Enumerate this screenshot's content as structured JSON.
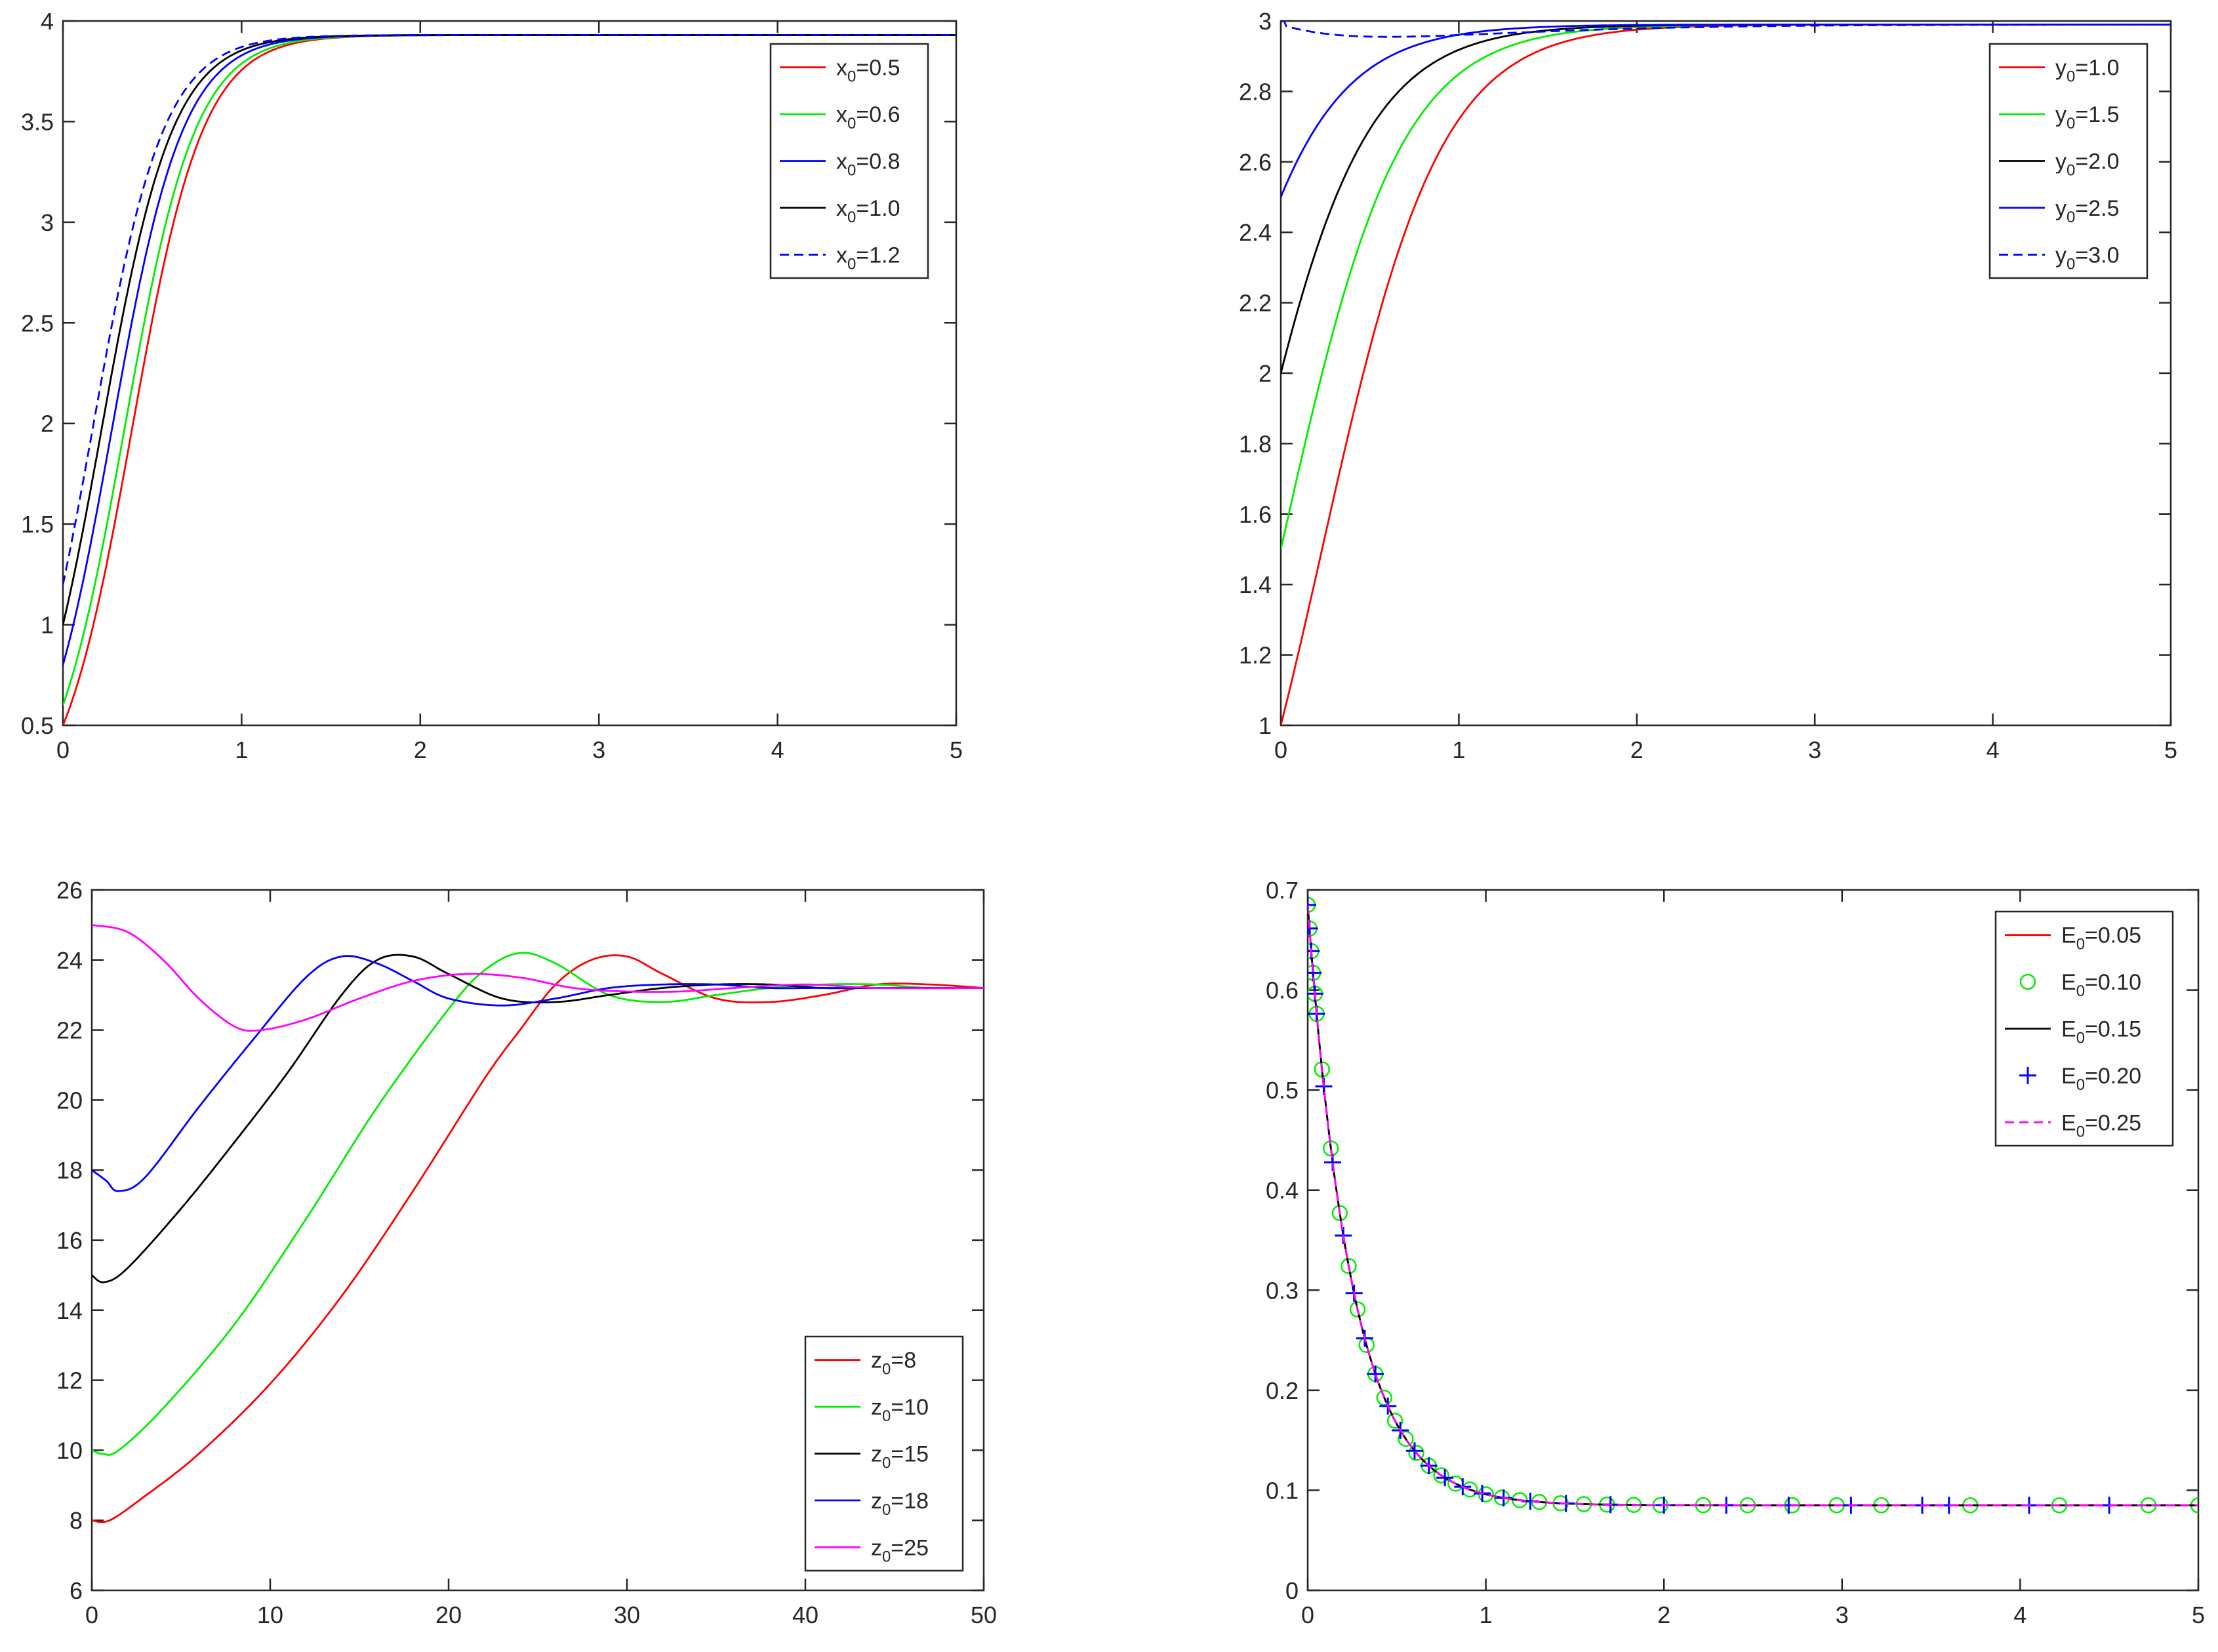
{
  "chart_data": [
    {
      "id": "x",
      "type": "line",
      "title": "",
      "xlabel": "",
      "ylabel": "",
      "xlim": [
        0,
        5
      ],
      "ylim": [
        0.5,
        4
      ],
      "xticks": [
        "0",
        "1",
        "2",
        "3",
        "4",
        "5"
      ],
      "yticks": [
        "0.5",
        "1",
        "1.5",
        "2",
        "2.5",
        "3",
        "3.5",
        "4"
      ],
      "legend_position": "top-right",
      "model": "logistic",
      "equilibrium": 3.93,
      "rate": 5.0,
      "series": [
        {
          "name": "0.5",
          "legend_var": "x",
          "legend_value": "0.5",
          "initial": 0.5,
          "color": "#ff0000",
          "style": "solid"
        },
        {
          "name": "0.6",
          "legend_var": "x",
          "legend_value": "0.6",
          "initial": 0.6,
          "color": "#00ee00",
          "style": "solid"
        },
        {
          "name": "0.8",
          "legend_var": "x",
          "legend_value": "0.8",
          "initial": 0.8,
          "color": "#0000ff",
          "style": "solid"
        },
        {
          "name": "1.0",
          "legend_var": "x",
          "legend_value": "1.0",
          "initial": 1.0,
          "color": "#000000",
          "style": "solid"
        },
        {
          "name": "1.2",
          "legend_var": "x",
          "legend_value": "1.2",
          "initial": 1.2,
          "color": "#0000ff",
          "style": "dashed"
        }
      ]
    },
    {
      "id": "y",
      "type": "line",
      "title": "",
      "xlabel": "",
      "ylabel": "",
      "xlim": [
        0,
        5
      ],
      "ylim": [
        1,
        3
      ],
      "xticks": [
        "0",
        "1",
        "2",
        "3",
        "4",
        "5"
      ],
      "yticks": [
        "1",
        "1.2",
        "1.4",
        "1.6",
        "1.8",
        "2",
        "2.2",
        "2.4",
        "2.6",
        "2.8",
        "3"
      ],
      "legend_position": "top-right",
      "model": "logistic",
      "equilibrium": 2.99,
      "rate": 3.0,
      "dip": {
        "series_index": 4,
        "amount": 0.035,
        "time": 0.6
      },
      "series": [
        {
          "name": "1.0",
          "legend_var": "y",
          "legend_value": "1.0",
          "initial": 1.0,
          "color": "#ff0000",
          "style": "solid"
        },
        {
          "name": "1.5",
          "legend_var": "y",
          "legend_value": "1.5",
          "initial": 1.5,
          "color": "#00ee00",
          "style": "solid"
        },
        {
          "name": "2.0",
          "legend_var": "y",
          "legend_value": "2.0",
          "initial": 2.0,
          "color": "#000000",
          "style": "solid"
        },
        {
          "name": "2.5",
          "legend_var": "y",
          "legend_value": "2.5",
          "initial": 2.5,
          "color": "#0000ff",
          "style": "solid"
        },
        {
          "name": "3.0",
          "legend_var": "y",
          "legend_value": "3.0",
          "initial": 3.0,
          "color": "#0000ff",
          "style": "dashed"
        }
      ]
    },
    {
      "id": "z",
      "type": "line",
      "title": "",
      "xlabel": "",
      "ylabel": "",
      "xlim": [
        0,
        50
      ],
      "ylim": [
        6,
        26
      ],
      "xticks": [
        "0",
        "10",
        "20",
        "30",
        "40",
        "50"
      ],
      "yticks": [
        "6",
        "8",
        "10",
        "12",
        "14",
        "16",
        "18",
        "20",
        "22",
        "24",
        "26"
      ],
      "legend_position": "bottom-right",
      "model": "damped",
      "equilibrium": 23.2,
      "series": [
        {
          "name": "8",
          "legend_var": "z",
          "legend_value": "8",
          "color": "#ff0000",
          "style": "solid",
          "points": [
            [
              0,
              8
            ],
            [
              1,
              8
            ],
            [
              3,
              8.7
            ],
            [
              6,
              9.9
            ],
            [
              10,
              11.9
            ],
            [
              14,
              14.4
            ],
            [
              18,
              17.4
            ],
            [
              22,
              20.6
            ],
            [
              24,
              22.0
            ],
            [
              26,
              23.3
            ],
            [
              28,
              24.0
            ],
            [
              30,
              24.1
            ],
            [
              32,
              23.6
            ],
            [
              35,
              22.9
            ],
            [
              38,
              22.8
            ],
            [
              41,
              23.0
            ],
            [
              44,
              23.3
            ],
            [
              47,
              23.3
            ],
            [
              50,
              23.2
            ]
          ]
        },
        {
          "name": "10",
          "legend_var": "z",
          "legend_value": "10",
          "color": "#00ee00",
          "style": "solid",
          "points": [
            [
              0,
              10
            ],
            [
              0.6,
              9.9
            ],
            [
              1.5,
              10.0
            ],
            [
              4,
              11.2
            ],
            [
              8,
              13.6
            ],
            [
              12,
              16.6
            ],
            [
              16,
              19.8
            ],
            [
              20,
              22.6
            ],
            [
              22,
              23.7
            ],
            [
              24,
              24.2
            ],
            [
              26,
              23.9
            ],
            [
              29,
              23.0
            ],
            [
              32,
              22.8
            ],
            [
              35,
              23.0
            ],
            [
              38,
              23.2
            ],
            [
              41,
              23.3
            ],
            [
              44,
              23.3
            ],
            [
              47,
              23.2
            ],
            [
              50,
              23.2
            ]
          ]
        },
        {
          "name": "15",
          "legend_var": "z",
          "legend_value": "15",
          "color": "#000000",
          "style": "solid",
          "points": [
            [
              0,
              15
            ],
            [
              0.7,
              14.8
            ],
            [
              2,
              15.2
            ],
            [
              5,
              16.9
            ],
            [
              8,
              18.8
            ],
            [
              11,
              20.8
            ],
            [
              14,
              23.0
            ],
            [
              16,
              24.0
            ],
            [
              18,
              24.1
            ],
            [
              20,
              23.6
            ],
            [
              23,
              22.9
            ],
            [
              26,
              22.8
            ],
            [
              29,
              23.0
            ],
            [
              32,
              23.2
            ],
            [
              35,
              23.3
            ],
            [
              38,
              23.3
            ],
            [
              41,
              23.2
            ],
            [
              44,
              23.2
            ],
            [
              50,
              23.2
            ]
          ]
        },
        {
          "name": "18",
          "legend_var": "z",
          "legend_value": "18",
          "color": "#0000ff",
          "style": "solid",
          "points": [
            [
              0,
              18
            ],
            [
              0.8,
              17.7
            ],
            [
              1.5,
              17.4
            ],
            [
              3,
              17.8
            ],
            [
              6,
              19.8
            ],
            [
              9,
              21.7
            ],
            [
              12,
              23.5
            ],
            [
              14,
              24.1
            ],
            [
              16,
              23.9
            ],
            [
              18,
              23.4
            ],
            [
              20,
              22.9
            ],
            [
              23,
              22.7
            ],
            [
              26,
              22.9
            ],
            [
              29,
              23.2
            ],
            [
              32,
              23.3
            ],
            [
              35,
              23.3
            ],
            [
              38,
              23.2
            ],
            [
              41,
              23.2
            ],
            [
              50,
              23.2
            ]
          ]
        },
        {
          "name": "25",
          "legend_var": "z",
          "legend_value": "25",
          "color": "#ff00ff",
          "style": "solid",
          "points": [
            [
              0,
              25
            ],
            [
              2,
              24.8
            ],
            [
              4,
              24.0
            ],
            [
              6,
              22.9
            ],
            [
              8,
              22.1
            ],
            [
              9.5,
              22.0
            ],
            [
              12,
              22.3
            ],
            [
              15,
              22.9
            ],
            [
              18,
              23.4
            ],
            [
              21,
              23.6
            ],
            [
              24,
              23.5
            ],
            [
              27,
              23.2
            ],
            [
              30,
              23.1
            ],
            [
              33,
              23.1
            ],
            [
              36,
              23.2
            ],
            [
              40,
              23.3
            ],
            [
              44,
              23.2
            ],
            [
              50,
              23.2
            ]
          ]
        }
      ]
    },
    {
      "id": "E",
      "type": "line",
      "title": "",
      "xlabel": "",
      "ylabel": "",
      "xlim": [
        0,
        5
      ],
      "ylim": [
        0,
        0.7
      ],
      "xticks": [
        "0",
        "1",
        "2",
        "3",
        "4",
        "5"
      ],
      "yticks": [
        "0",
        "0.1",
        "0.2",
        "0.3",
        "0.4",
        "0.5",
        "0.6",
        "0.7"
      ],
      "legend_position": "top-right",
      "model": "decay",
      "equilibrium": 0.085,
      "peak": 0.685,
      "rate": 4.0,
      "series": [
        {
          "name": "0.05",
          "legend_var": "E",
          "legend_value": "0.05",
          "color": "#ff0000",
          "style": "solid"
        },
        {
          "name": "0.10",
          "legend_var": "E",
          "legend_value": "0.10",
          "color": "#00ee00",
          "style": "circle"
        },
        {
          "name": "0.15",
          "legend_var": "E",
          "legend_value": "0.15",
          "color": "#000000",
          "style": "solid"
        },
        {
          "name": "0.20",
          "legend_var": "E",
          "legend_value": "0.20",
          "color": "#0000ff",
          "style": "plus"
        },
        {
          "name": "0.25",
          "legend_var": "E",
          "legend_value": "0.25",
          "color": "#ff00ff",
          "style": "dashed"
        }
      ],
      "marker_x": [
        0,
        0.01,
        0.02,
        0.03,
        0.04,
        0.05,
        0.08,
        0.13,
        0.18,
        0.23,
        0.28,
        0.33,
        0.38,
        0.43,
        0.49,
        0.55,
        0.61,
        0.68,
        0.75,
        0.83,
        0.91,
        1.0,
        1.09,
        1.19,
        1.3,
        1.42,
        1.55,
        1.68,
        1.83,
        1.98,
        2.22,
        2.47,
        2.72,
        2.97,
        3.22,
        3.72,
        4.22,
        4.72,
        5.0
      ],
      "plus_x": [
        0,
        0.01,
        0.02,
        0.03,
        0.04,
        0.05,
        0.09,
        0.14,
        0.2,
        0.26,
        0.32,
        0.38,
        0.45,
        0.52,
        0.6,
        0.68,
        0.77,
        0.87,
        0.98,
        1.1,
        1.25,
        1.45,
        1.7,
        2.0,
        2.35,
        2.7,
        3.05,
        3.45,
        3.6,
        4.05,
        4.5
      ]
    }
  ]
}
